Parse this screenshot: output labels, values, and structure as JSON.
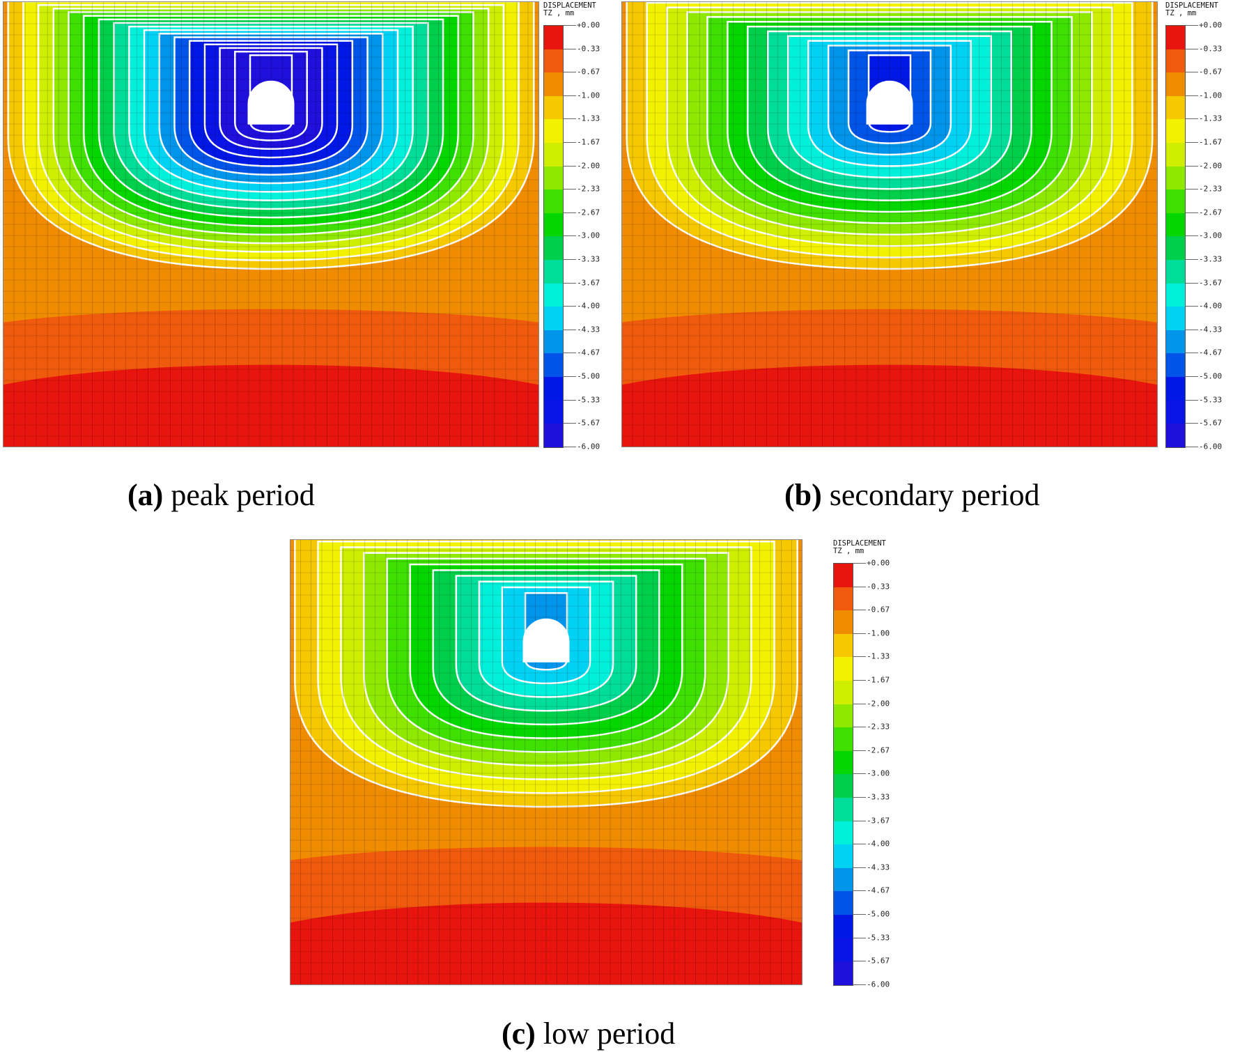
{
  "legend": {
    "title_line1": "DISPLACEMENT",
    "title_line2": "TZ , mm",
    "ticks": [
      "+0.00",
      "-0.33",
      "-0.67",
      "-1.00",
      "-1.33",
      "-1.67",
      "-2.00",
      "-2.33",
      "-2.67",
      "-3.00",
      "-3.33",
      "-3.67",
      "-4.00",
      "-4.33",
      "-4.67",
      "-5.00",
      "-5.33",
      "-5.67",
      "-6.00"
    ],
    "colors": [
      "#e8140e",
      "#f05a0c",
      "#f08c00",
      "#f5c800",
      "#f2f200",
      "#cfee00",
      "#8fe800",
      "#3fe000",
      "#05d600",
      "#00cf4c",
      "#00dc9a",
      "#00f0dc",
      "#00d2f4",
      "#0094ea",
      "#0054e8",
      "#0018e6",
      "#0a14e6",
      "#1f10dc"
    ]
  },
  "panels": [
    {
      "id": "a",
      "label": "(a)",
      "text": " peak period",
      "max_depth_level": 18
    },
    {
      "id": "b",
      "label": "(b)",
      "text": " secondary period",
      "max_depth_level": 14
    },
    {
      "id": "c",
      "label": "(c)",
      "text": " low period",
      "max_depth_level": 12
    }
  ]
}
